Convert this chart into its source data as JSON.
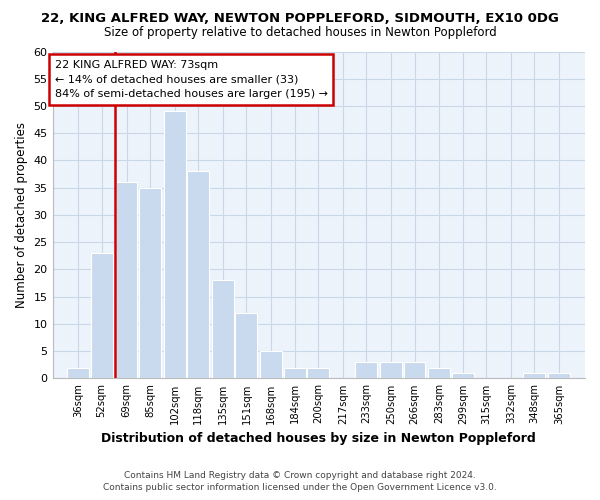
{
  "title": "22, KING ALFRED WAY, NEWTON POPPLEFORD, SIDMOUTH, EX10 0DG",
  "subtitle": "Size of property relative to detached houses in Newton Poppleford",
  "xlabel": "Distribution of detached houses by size in Newton Poppleford",
  "ylabel": "Number of detached properties",
  "bin_labels": [
    "36sqm",
    "52sqm",
    "69sqm",
    "85sqm",
    "102sqm",
    "118sqm",
    "135sqm",
    "151sqm",
    "168sqm",
    "184sqm",
    "200sqm",
    "217sqm",
    "233sqm",
    "250sqm",
    "266sqm",
    "283sqm",
    "299sqm",
    "315sqm",
    "332sqm",
    "348sqm",
    "365sqm"
  ],
  "bar_values": [
    2,
    23,
    36,
    35,
    49,
    38,
    18,
    12,
    5,
    2,
    2,
    0,
    3,
    3,
    3,
    2,
    1,
    0,
    0,
    1,
    1
  ],
  "bar_color": "#c9d9ee",
  "bar_edge_color": "#ffffff",
  "property_line_color": "#cc0000",
  "ylim": [
    0,
    60
  ],
  "yticks": [
    0,
    5,
    10,
    15,
    20,
    25,
    30,
    35,
    40,
    45,
    50,
    55,
    60
  ],
  "annotation_title": "22 KING ALFRED WAY: 73sqm",
  "annotation_line1": "← 14% of detached houses are smaller (33)",
  "annotation_line2": "84% of semi-detached houses are larger (195) →",
  "annotation_box_color": "#ffffff",
  "annotation_box_edge": "#cc0000",
  "footer1": "Contains HM Land Registry data © Crown copyright and database right 2024.",
  "footer2": "Contains public sector information licensed under the Open Government Licence v3.0.",
  "bin_edges": [
    36,
    52,
    69,
    85,
    102,
    118,
    135,
    151,
    168,
    184,
    200,
    217,
    233,
    250,
    266,
    283,
    299,
    315,
    332,
    348,
    365
  ],
  "background_color": "#ffffff",
  "grid_color": "#c8d8e8",
  "ax_background": "#edf3fa"
}
